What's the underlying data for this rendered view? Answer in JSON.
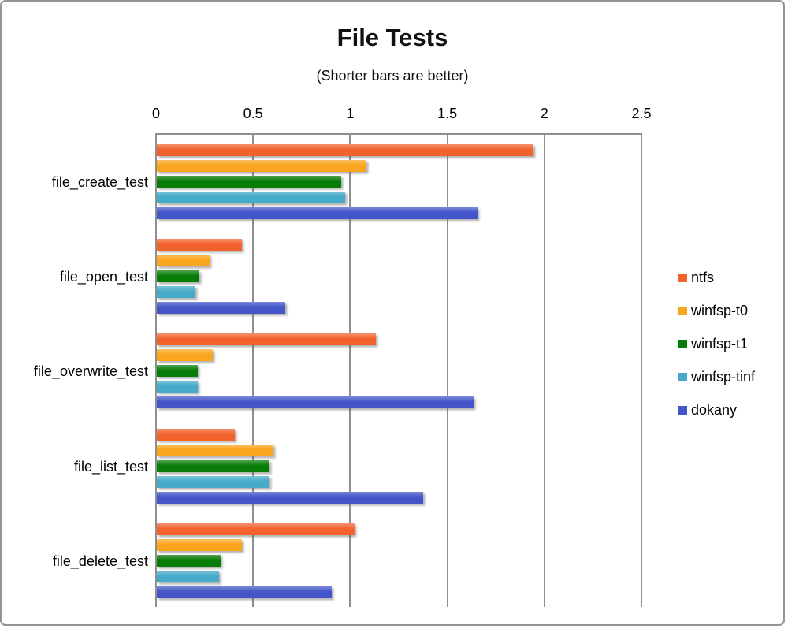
{
  "title": "File Tests",
  "subtitle": "(Shorter bars are better)",
  "chart_data": {
    "type": "bar",
    "orientation": "horizontal",
    "title": "File Tests",
    "subtitle": "(Shorter bars are better)",
    "xlabel": "",
    "ylabel": "",
    "xlim": [
      0,
      2.5
    ],
    "x_ticks": [
      0,
      0.5,
      1,
      1.5,
      2,
      2.5
    ],
    "x_tick_labels": [
      "0",
      "0.5",
      "1",
      "1.5",
      "2",
      "2.5"
    ],
    "grid": "vertical",
    "legend_position": "right",
    "categories": [
      "file_create_test",
      "file_open_test",
      "file_overwrite_test",
      "file_list_test",
      "file_delete_test"
    ],
    "series": [
      {
        "name": "ntfs",
        "color": "#F2622D",
        "values": [
          1.94,
          0.44,
          1.13,
          0.4,
          1.02
        ]
      },
      {
        "name": "winfsp-t0",
        "color": "#FAA51E",
        "values": [
          1.08,
          0.27,
          0.29,
          0.6,
          0.44
        ]
      },
      {
        "name": "winfsp-t1",
        "color": "#077D07",
        "values": [
          0.95,
          0.22,
          0.21,
          0.58,
          0.33
        ]
      },
      {
        "name": "winfsp-tinf",
        "color": "#46ABC8",
        "values": [
          0.97,
          0.2,
          0.21,
          0.58,
          0.32
        ]
      },
      {
        "name": "dokany",
        "color": "#4355C8",
        "values": [
          1.65,
          0.66,
          1.63,
          1.37,
          0.9
        ]
      }
    ],
    "colors": {
      "gridline": "#8f8f8f",
      "border": "#949494",
      "text": "#000000"
    }
  }
}
